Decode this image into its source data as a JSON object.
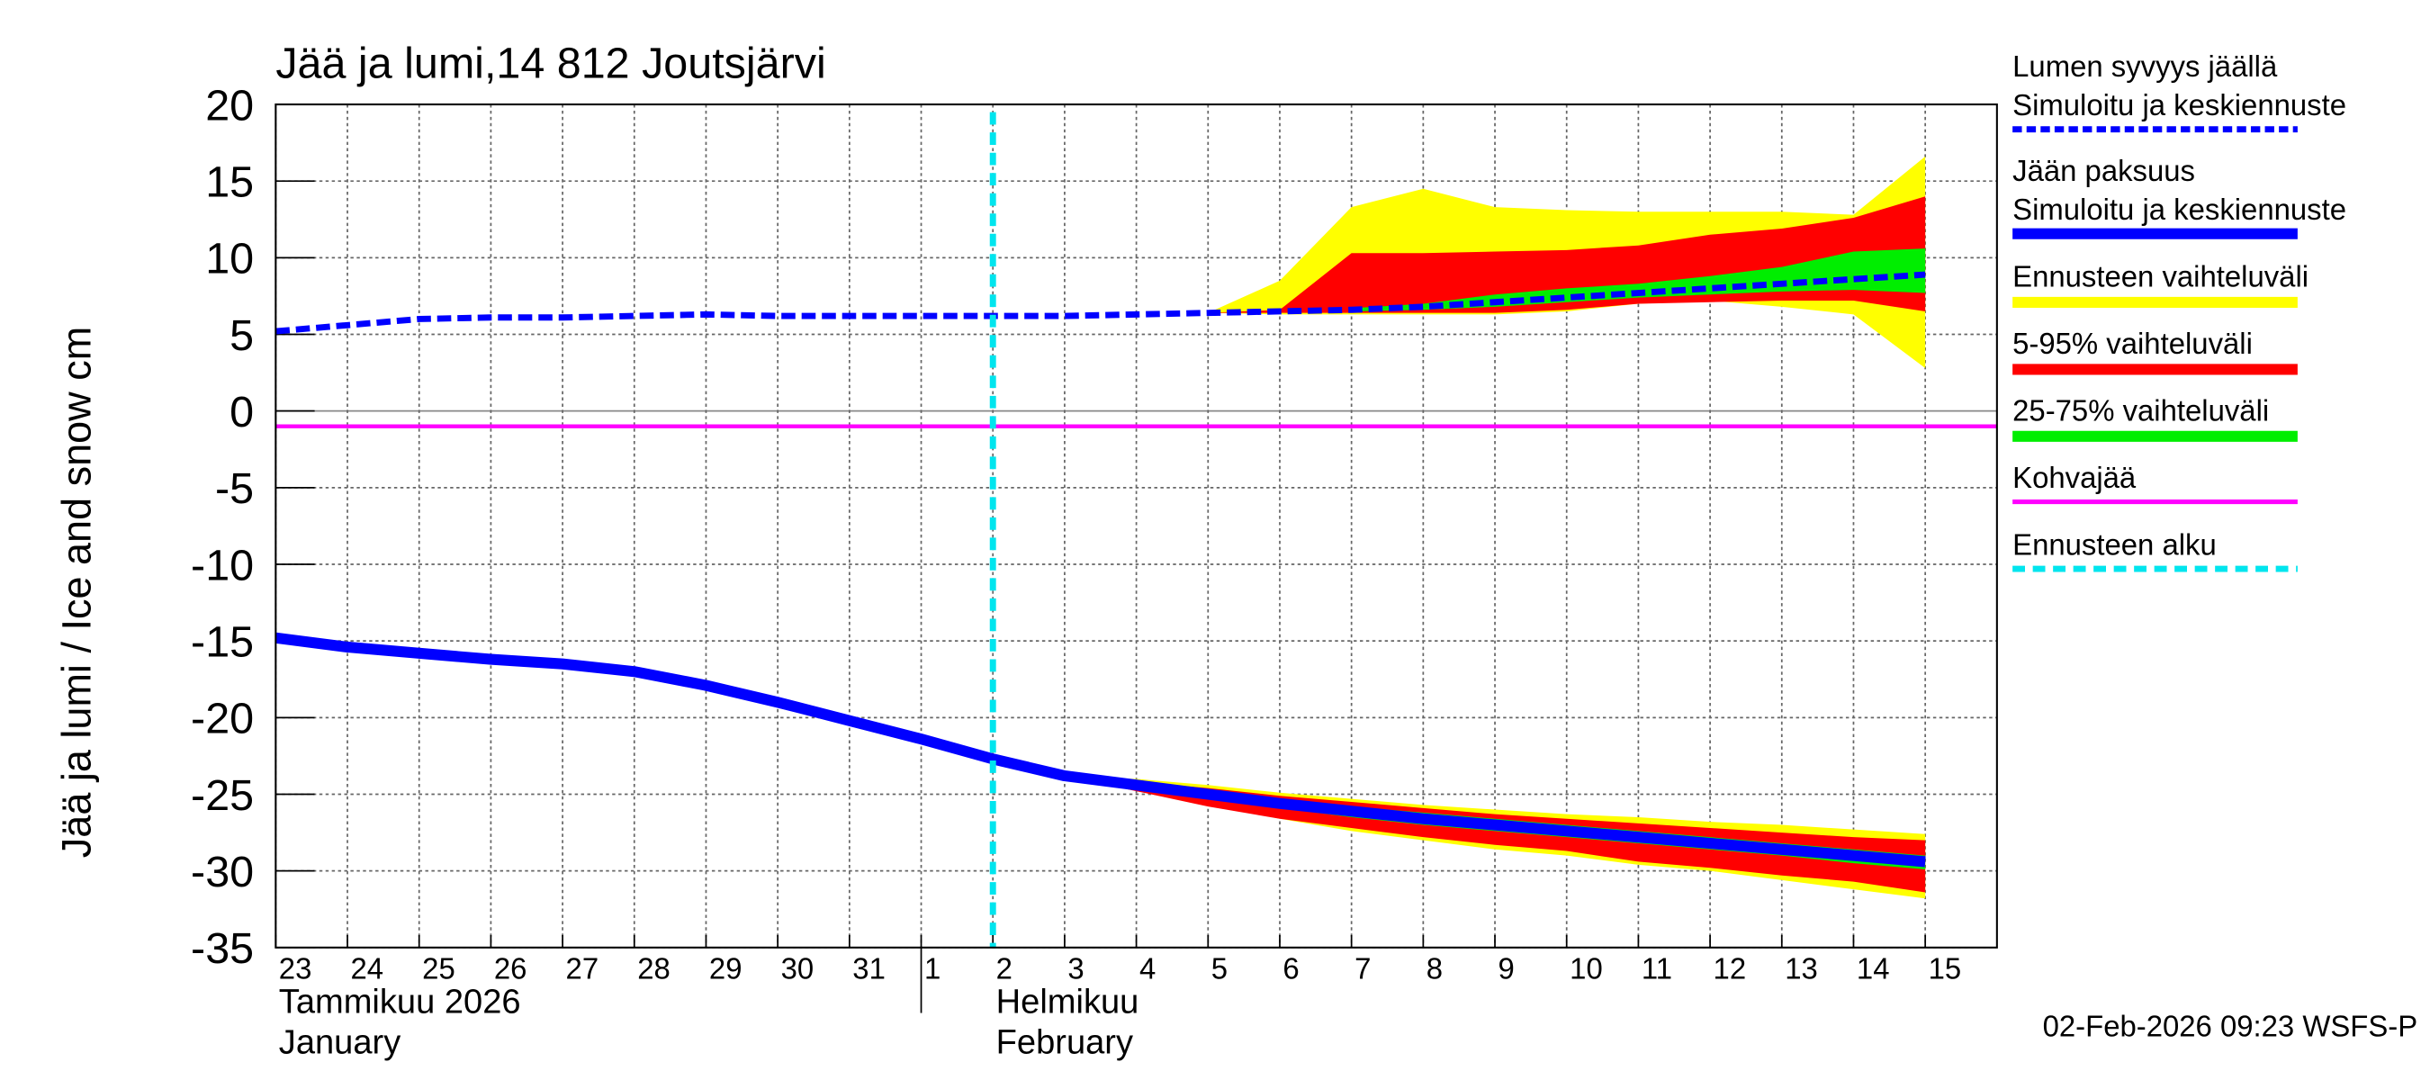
{
  "chart_data": {
    "type": "band-line",
    "title": "Jää ja lumi,14 812 Joutsjärvi",
    "y_label": "Jää ja lumi / Ice and snow    cm",
    "footer": "02-Feb-2026 09:23 WSFS-P",
    "xlim": [
      "2026-01-23",
      "2026-02-16"
    ],
    "x": [
      "2026-01-23",
      "2026-01-24",
      "2026-01-25",
      "2026-01-26",
      "2026-01-27",
      "2026-01-28",
      "2026-01-29",
      "2026-01-30",
      "2026-01-31",
      "2026-02-01",
      "2026-02-02",
      "2026-02-03",
      "2026-02-04",
      "2026-02-05",
      "2026-02-06",
      "2026-02-07",
      "2026-02-08",
      "2026-02-09",
      "2026-02-10",
      "2026-02-11",
      "2026-02-12",
      "2026-02-13",
      "2026-02-14",
      "2026-02-15"
    ],
    "xticks": [
      {
        "value": "2026-01-23",
        "label": "23"
      },
      {
        "value": "2026-01-24",
        "label": "24"
      },
      {
        "value": "2026-01-25",
        "label": "25"
      },
      {
        "value": "2026-01-26",
        "label": "26"
      },
      {
        "value": "2026-01-27",
        "label": "27"
      },
      {
        "value": "2026-01-28",
        "label": "28"
      },
      {
        "value": "2026-01-29",
        "label": "29"
      },
      {
        "value": "2026-01-30",
        "label": "30"
      },
      {
        "value": "2026-01-31",
        "label": "31"
      },
      {
        "value": "2026-02-01",
        "label": "1"
      },
      {
        "value": "2026-02-02",
        "label": "2"
      },
      {
        "value": "2026-02-03",
        "label": "3"
      },
      {
        "value": "2026-02-04",
        "label": "4"
      },
      {
        "value": "2026-02-05",
        "label": "5"
      },
      {
        "value": "2026-02-06",
        "label": "6"
      },
      {
        "value": "2026-02-07",
        "label": "7"
      },
      {
        "value": "2026-02-08",
        "label": "8"
      },
      {
        "value": "2026-02-09",
        "label": "9"
      },
      {
        "value": "2026-02-10",
        "label": "10"
      },
      {
        "value": "2026-02-11",
        "label": "11"
      },
      {
        "value": "2026-02-12",
        "label": "12"
      },
      {
        "value": "2026-02-13",
        "label": "13"
      },
      {
        "value": "2026-02-14",
        "label": "14"
      },
      {
        "value": "2026-02-15",
        "label": "15"
      }
    ],
    "month_labels": [
      {
        "value": "2026-01-23",
        "label": "Tammikuu  2026",
        "label_en": "January"
      },
      {
        "value": "2026-02-02",
        "label": "Helmikuu",
        "label_en": "February"
      }
    ],
    "ylim": [
      -35,
      20
    ],
    "yticks": [
      -35,
      -30,
      -25,
      -20,
      -15,
      -10,
      -5,
      0,
      5,
      10,
      15,
      20
    ],
    "grid": true,
    "bands": [
      {
        "name": "Ennusteen vaihteluväli",
        "color": "#ffff00",
        "snow_low": [
          null,
          null,
          null,
          null,
          null,
          null,
          null,
          null,
          null,
          null,
          null,
          null,
          null,
          6.4,
          6.3,
          6.3,
          6.3,
          6.3,
          6.5,
          7.0,
          7.2,
          6.8,
          6.3,
          2.8
        ],
        "snow_high": [
          null,
          null,
          null,
          null,
          null,
          null,
          null,
          null,
          null,
          null,
          null,
          null,
          null,
          6.4,
          8.5,
          13.3,
          14.5,
          13.3,
          13.1,
          13.0,
          13.0,
          13.0,
          12.8,
          16.6
        ],
        "ice_low": [
          null,
          null,
          null,
          null,
          null,
          null,
          null,
          null,
          null,
          null,
          null,
          -23.8,
          -24.6,
          -25.6,
          -26.6,
          -27.4,
          -28.0,
          -28.6,
          -29.0,
          -29.6,
          -30.0,
          -30.6,
          -31.2,
          -31.8
        ],
        "ice_high": [
          null,
          null,
          null,
          null,
          null,
          null,
          null,
          null,
          null,
          null,
          null,
          -23.8,
          -24.0,
          -24.4,
          -24.9,
          -25.3,
          -25.7,
          -26.0,
          -26.3,
          -26.5,
          -26.8,
          -27.0,
          -27.3,
          -27.6
        ]
      },
      {
        "name": "5-95% vaihteluväli",
        "color": "#ff0000",
        "snow_low": [
          null,
          null,
          null,
          null,
          null,
          null,
          null,
          null,
          null,
          null,
          null,
          null,
          null,
          6.4,
          6.4,
          6.4,
          6.4,
          6.4,
          6.6,
          7.0,
          7.1,
          7.2,
          7.2,
          6.5
        ],
        "snow_high": [
          null,
          null,
          null,
          null,
          null,
          null,
          null,
          null,
          null,
          null,
          null,
          null,
          null,
          6.4,
          6.6,
          10.3,
          10.3,
          10.4,
          10.5,
          10.8,
          11.5,
          11.9,
          12.6,
          14.0
        ],
        "ice_low": [
          null,
          null,
          null,
          null,
          null,
          null,
          null,
          null,
          null,
          null,
          null,
          -23.8,
          -24.8,
          -25.8,
          -26.6,
          -27.2,
          -27.8,
          -28.3,
          -28.7,
          -29.4,
          -29.8,
          -30.3,
          -30.7,
          -31.4
        ],
        "ice_high": [
          null,
          null,
          null,
          null,
          null,
          null,
          null,
          null,
          null,
          null,
          null,
          -23.8,
          -24.2,
          -24.6,
          -25.1,
          -25.5,
          -25.9,
          -26.3,
          -26.6,
          -26.9,
          -27.2,
          -27.5,
          -27.8,
          -28.0
        ]
      },
      {
        "name": "25-75% vaihteluväli",
        "color": "#00ee00",
        "snow_low": [
          null,
          null,
          null,
          null,
          null,
          null,
          null,
          null,
          null,
          null,
          null,
          null,
          null,
          null,
          null,
          6.5,
          6.6,
          6.8,
          7.1,
          7.4,
          7.6,
          7.8,
          7.9,
          7.7
        ],
        "snow_high": [
          null,
          null,
          null,
          null,
          null,
          null,
          null,
          null,
          null,
          null,
          null,
          null,
          null,
          null,
          null,
          6.7,
          7.0,
          7.6,
          8.0,
          8.3,
          8.8,
          9.4,
          10.4,
          10.6
        ],
        "ice_low": [
          null,
          null,
          null,
          null,
          null,
          null,
          null,
          null,
          null,
          null,
          null,
          null,
          -24.6,
          -25.3,
          -25.9,
          -26.5,
          -27.0,
          -27.4,
          -27.8,
          -28.2,
          -28.6,
          -29.0,
          -29.5,
          -29.9
        ],
        "ice_high": [
          null,
          null,
          null,
          null,
          null,
          null,
          null,
          null,
          null,
          null,
          null,
          null,
          -24.3,
          -24.8,
          -25.3,
          -25.8,
          -26.2,
          -26.6,
          -27.0,
          -27.4,
          -27.8,
          -28.2,
          -28.6,
          -29.0
        ]
      }
    ],
    "series": [
      {
        "name": "Lumen syvyys jäällä",
        "subname": "Simuloitu ja keskiennuste",
        "color": "#0000ff",
        "dashed": true,
        "values": [
          5.2,
          5.6,
          6.0,
          6.1,
          6.1,
          6.2,
          6.3,
          6.2,
          6.2,
          6.2,
          6.2,
          6.2,
          6.3,
          6.4,
          6.5,
          6.6,
          6.8,
          7.1,
          7.4,
          7.7,
          8.0,
          8.3,
          8.6,
          8.9
        ]
      },
      {
        "name": "Jään paksuus",
        "subname": "Simuloitu ja keskiennuste",
        "color": "#0000ff",
        "dashed": false,
        "values": [
          -14.8,
          -15.4,
          -15.8,
          -16.2,
          -16.5,
          -17.0,
          -17.9,
          -19.0,
          -20.2,
          -21.4,
          -22.7,
          -23.8,
          -24.4,
          -25.0,
          -25.6,
          -26.1,
          -26.6,
          -27.0,
          -27.4,
          -27.8,
          -28.2,
          -28.6,
          -29.0,
          -29.4
        ]
      }
    ],
    "kohva": {
      "name": "Kohvajää",
      "color": "#ff00ff",
      "value": -1
    },
    "forecast_start": {
      "name": "Ennusteen alku",
      "color": "#00e5ee",
      "value": "2026-02-02"
    }
  }
}
